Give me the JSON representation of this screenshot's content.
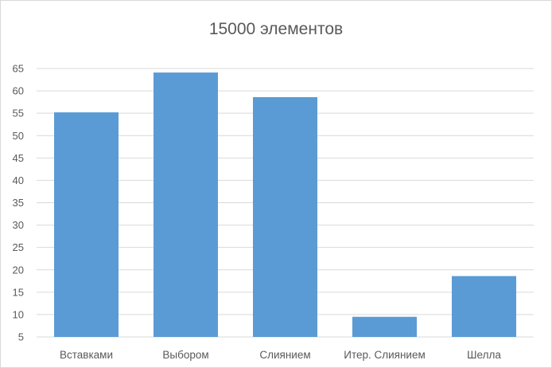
{
  "chart_data": {
    "type": "bar",
    "title": "15000 элементов",
    "xlabel": "",
    "ylabel": "",
    "categories": [
      "Вставками",
      "Выбором",
      "Слиянием",
      "Итер. Слиянием",
      "Шелла"
    ],
    "values": [
      55.2,
      64.1,
      58.6,
      9.5,
      18.6
    ],
    "ylim": [
      5,
      65
    ],
    "yticks": [
      5,
      10,
      15,
      20,
      25,
      30,
      35,
      40,
      45,
      50,
      55,
      60,
      65
    ],
    "grid": true,
    "legend": "none",
    "bar_color": "#5b9bd5"
  }
}
